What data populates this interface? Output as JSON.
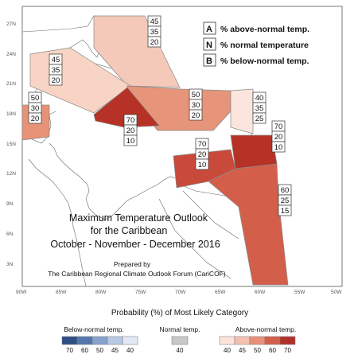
{
  "map": {
    "title_line1": "Maximum Temperature Outlook",
    "title_line2": "for the Caribbean",
    "title_line3": "October - November - December 2016",
    "prepared_by": "Prepared by",
    "forum": "The Caribbean Regional Climate Outlook Forum (CariCOF)",
    "lat_labels": [
      "27N",
      "24N",
      "21N",
      "18N",
      "15N",
      "12N",
      "9N",
      "6N",
      "3N"
    ],
    "lon_labels": [
      "90W",
      "85W",
      "80W",
      "75W",
      "70W",
      "65W",
      "60W",
      "55W",
      "50W"
    ]
  },
  "key": {
    "items": [
      {
        "letter": "A",
        "text": "% above-normal temp."
      },
      {
        "letter": "N",
        "text": "% normal temperature"
      },
      {
        "letter": "B",
        "text": "% below-normal temp."
      }
    ]
  },
  "regions": [
    {
      "id": "bahamas",
      "values": [
        "45",
        "35",
        "20"
      ],
      "color": "#f4c9b9"
    },
    {
      "id": "cuba",
      "values": [
        "45",
        "35",
        "20"
      ],
      "color": "#f7d4c4"
    },
    {
      "id": "belize",
      "values": [
        "50",
        "30",
        "20"
      ],
      "color": "#e79276"
    },
    {
      "id": "hispaniola",
      "values": [
        "50",
        "30",
        "20"
      ],
      "color": "#e6957a"
    },
    {
      "id": "jamaica",
      "values": [
        "70",
        "20",
        "10"
      ],
      "color": "#b73226"
    },
    {
      "id": "leeward",
      "values": [
        "40",
        "35",
        "25"
      ],
      "color": "#fbe6dd"
    },
    {
      "id": "windward",
      "values": [
        "70",
        "20",
        "10"
      ],
      "color": "#b73226"
    },
    {
      "id": "abc-islands",
      "values": [
        "70",
        "20",
        "10"
      ],
      "color": "#c94a3a"
    },
    {
      "id": "guianas",
      "values": [
        "60",
        "25",
        "15"
      ],
      "color": "#d35f4b"
    }
  ],
  "legend": {
    "title": "Probability (%) of Most Likely Category",
    "below_label": "Below-normal temp.",
    "normal_label": "Normal temp.",
    "above_label": "Above-normal temp.",
    "below_values": [
      "70",
      "60",
      "50",
      "45",
      "40"
    ],
    "below_colors": [
      "#2e4e86",
      "#5677ad",
      "#87a3cd",
      "#b7c9e4",
      "#e2e9f4"
    ],
    "normal_values": [
      "40"
    ],
    "normal_colors": [
      "#c8c8c8"
    ],
    "above_values": [
      "40",
      "45",
      "50",
      "60",
      "70"
    ],
    "above_colors": [
      "#fbe3da",
      "#f4c1b0",
      "#e99178",
      "#d35f4b",
      "#b0302a"
    ]
  }
}
